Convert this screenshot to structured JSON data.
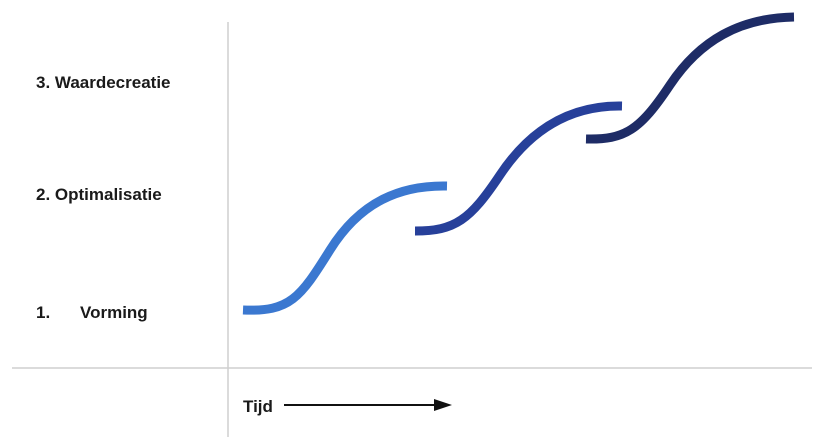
{
  "stages": [
    {
      "number": "3.",
      "name": "Waardecreatie",
      "text": "3. Waardecreatie"
    },
    {
      "number": "2.",
      "name": "Optimalisatie",
      "text": "2. Optimalisatie"
    },
    {
      "number": "1.",
      "name": "Vorming"
    }
  ],
  "time_axis": {
    "label": "Tijd"
  },
  "colors": {
    "curve_1": "#3b78d0",
    "curve_2": "#27409a",
    "curve_3": "#1e2c66",
    "axis": "#cfcfcf",
    "text": "#1a1a1a",
    "arrow": "#111111"
  }
}
